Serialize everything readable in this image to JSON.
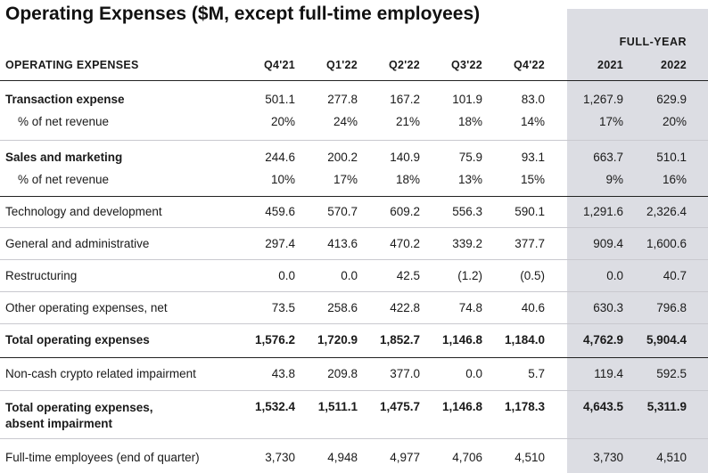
{
  "title": "Operating Expenses ($M, except full-time employees)",
  "full_year_label": "FULL-YEAR",
  "header": {
    "label": "OPERATING EXPENSES",
    "cols": [
      "Q4'21",
      "Q1'22",
      "Q2'22",
      "Q3'22",
      "Q4'22",
      "2021",
      "2022"
    ]
  },
  "rows": [
    {
      "label": "Transaction expense",
      "values": [
        "501.1",
        "277.8",
        "167.2",
        "101.9",
        "83.0",
        "1,267.9",
        "629.9"
      ]
    },
    {
      "label": "% of net revenue",
      "values": [
        "20%",
        "24%",
        "21%",
        "18%",
        "14%",
        "17%",
        "20%"
      ]
    },
    {
      "label": "Sales and marketing",
      "values": [
        "244.6",
        "200.2",
        "140.9",
        "75.9",
        "93.1",
        "663.7",
        "510.1"
      ]
    },
    {
      "label": "% of net revenue",
      "values": [
        "10%",
        "17%",
        "18%",
        "13%",
        "15%",
        "9%",
        "16%"
      ]
    },
    {
      "label": "Technology and development",
      "values": [
        "459.6",
        "570.7",
        "609.2",
        "556.3",
        "590.1",
        "1,291.6",
        "2,326.4"
      ]
    },
    {
      "label": "General and administrative",
      "values": [
        "297.4",
        "413.6",
        "470.2",
        "339.2",
        "377.7",
        "909.4",
        "1,600.6"
      ]
    },
    {
      "label": "Restructuring",
      "values": [
        "0.0",
        "0.0",
        "42.5",
        "(1.2)",
        "(0.5)",
        "0.0",
        "40.7"
      ]
    },
    {
      "label": "Other operating expenses, net",
      "values": [
        "73.5",
        "258.6",
        "422.8",
        "74.8",
        "40.6",
        "630.3",
        "796.8"
      ]
    },
    {
      "label": "Total operating expenses",
      "values": [
        "1,576.2",
        "1,720.9",
        "1,852.7",
        "1,146.8",
        "1,184.0",
        "4,762.9",
        "5,904.4"
      ]
    },
    {
      "label": "Non-cash crypto related impairment",
      "values": [
        "43.8",
        "209.8",
        "377.0",
        "0.0",
        "5.7",
        "119.4",
        "592.5"
      ]
    },
    {
      "label_line1": "Total operating expenses,",
      "label_line2": "absent impairment",
      "values": [
        "1,532.4",
        "1,511.1",
        "1,475.7",
        "1,146.8",
        "1,178.3",
        "4,643.5",
        "5,311.9"
      ]
    },
    {
      "label": "Full-time employees (end of quarter)",
      "values": [
        "3,730",
        "4,948",
        "4,977",
        "4,706",
        "4,510",
        "3,730",
        "4,510"
      ]
    }
  ]
}
